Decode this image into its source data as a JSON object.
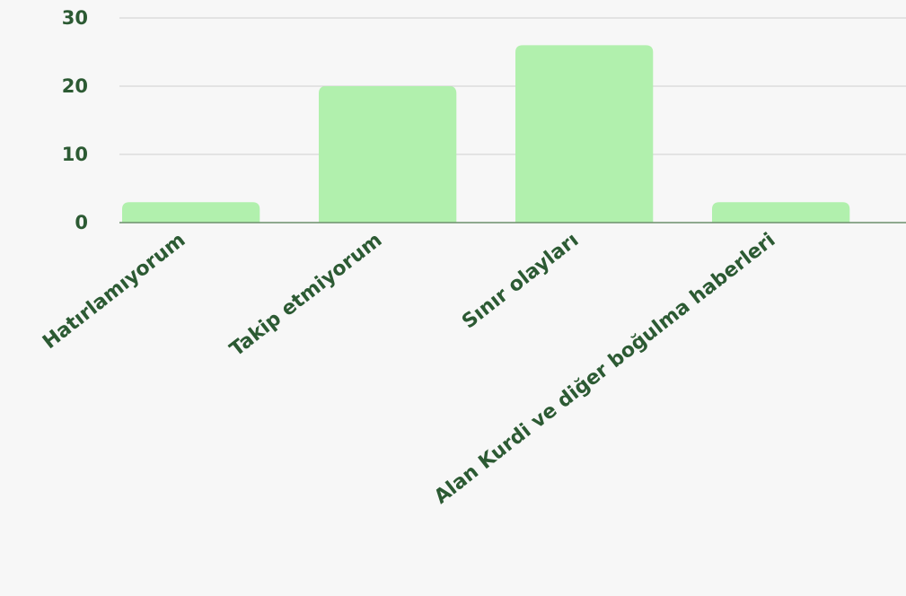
{
  "colors": {
    "bar": "#b1f0ad",
    "text": "#2c5a33",
    "grid": "#cfcfcf",
    "baseline": "#6d8f6d",
    "background": "#f7f7f7"
  },
  "chart_data": {
    "type": "bar",
    "categories": [
      "Hatırlamıyorum",
      "Takip etmiyorum",
      "Sınır olayları",
      "Alan Kurdi ve diğer boğulma haberleri"
    ],
    "values": [
      3,
      20,
      26,
      3
    ],
    "ylim": [
      0,
      30
    ],
    "yticks": [
      0,
      10,
      20,
      30
    ],
    "grid": true,
    "title": "",
    "xlabel": "",
    "ylabel": ""
  }
}
